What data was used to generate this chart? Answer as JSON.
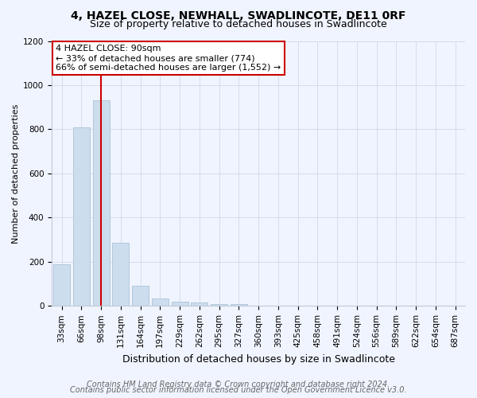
{
  "title": "4, HAZEL CLOSE, NEWHALL, SWADLINCOTE, DE11 0RF",
  "subtitle": "Size of property relative to detached houses in Swadlincote",
  "xlabel": "Distribution of detached houses by size in Swadlincote",
  "ylabel": "Number of detached properties",
  "categories": [
    "33sqm",
    "66sqm",
    "98sqm",
    "131sqm",
    "164sqm",
    "197sqm",
    "229sqm",
    "262sqm",
    "295sqm",
    "327sqm",
    "360sqm",
    "393sqm",
    "425sqm",
    "458sqm",
    "491sqm",
    "524sqm",
    "556sqm",
    "589sqm",
    "622sqm",
    "654sqm",
    "687sqm"
  ],
  "values": [
    190,
    810,
    930,
    285,
    90,
    35,
    20,
    15,
    10,
    10,
    0,
    0,
    0,
    0,
    0,
    0,
    0,
    0,
    0,
    0,
    0
  ],
  "bar_color": "#ccdded",
  "bar_edge_color": "#aac4d8",
  "vline_x_data": 2.0,
  "vline_color": "#cc0000",
  "annotation_text": "4 HAZEL CLOSE: 90sqm\n← 33% of detached houses are smaller (774)\n66% of semi-detached houses are larger (1,552) →",
  "annotation_box_color": "#ffffff",
  "annotation_box_edge": "#cc0000",
  "ylim": [
    0,
    1200
  ],
  "yticks": [
    0,
    200,
    400,
    600,
    800,
    1000,
    1200
  ],
  "footer1": "Contains HM Land Registry data © Crown copyright and database right 2024.",
  "footer2": "Contains public sector information licensed under the Open Government Licence v3.0.",
  "bg_color": "#f0f4ff",
  "plot_bg_color": "#f0f4ff",
  "title_fontsize": 10,
  "subtitle_fontsize": 9,
  "xlabel_fontsize": 9,
  "ylabel_fontsize": 8,
  "tick_fontsize": 7.5,
  "annotation_fontsize": 8,
  "footer_fontsize": 7
}
